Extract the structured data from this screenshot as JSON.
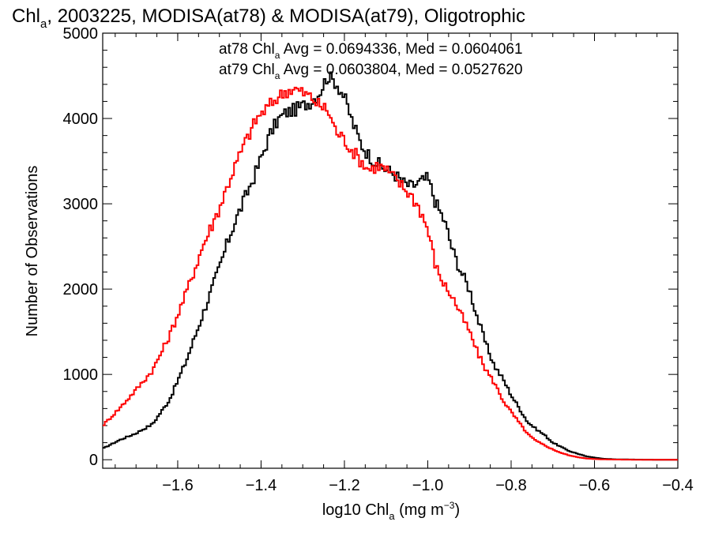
{
  "chart_data": {
    "type": "line",
    "title": {
      "pre": "Chl",
      "sub": "a",
      "post": ", 2003225, MODISA(at78) & MODISA(at79), Oligotrophic"
    },
    "xlabel": {
      "pre": "log10 Chl",
      "sub": "a",
      "mid": " (mg m",
      "sup": "−3",
      "post": ")"
    },
    "ylabel": "Number of Observations",
    "xlim": [
      -1.78,
      -0.4
    ],
    "ylim": [
      -100,
      5000
    ],
    "x_ticks": [
      {
        "value": -1.6,
        "label": "−1.6"
      },
      {
        "value": -1.4,
        "label": "−1.4"
      },
      {
        "value": -1.2,
        "label": "−1.2"
      },
      {
        "value": -1.0,
        "label": "−1.0"
      },
      {
        "value": -0.8,
        "label": "−0.8"
      },
      {
        "value": -0.6,
        "label": "−0.6"
      },
      {
        "value": -0.4,
        "label": "−0.4"
      }
    ],
    "y_ticks": [
      {
        "value": 0,
        "label": "0"
      },
      {
        "value": 1000,
        "label": "1000"
      },
      {
        "value": 2000,
        "label": "2000"
      },
      {
        "value": 3000,
        "label": "3000"
      },
      {
        "value": 4000,
        "label": "4000"
      },
      {
        "value": 5000,
        "label": "5000"
      }
    ],
    "legend": {
      "placement": "top-center",
      "entries": [
        {
          "series": "at78",
          "color": "#000000",
          "pre": "at78 Chl",
          "sub": "a",
          "post": " Avg = 0.0694336, Med = 0.0604061"
        },
        {
          "series": "at79",
          "color": "#ff0000",
          "pre": "at79 Chl",
          "sub": "a",
          "post": " Avg = 0.0603804, Med = 0.0527620"
        }
      ]
    },
    "series": [
      {
        "name": "at78",
        "color": "#000000",
        "style": "step",
        "x": [
          -1.78,
          -1.74,
          -1.7,
          -1.66,
          -1.62,
          -1.58,
          -1.54,
          -1.5,
          -1.47,
          -1.44,
          -1.41,
          -1.38,
          -1.36,
          -1.34,
          -1.32,
          -1.3,
          -1.28,
          -1.26,
          -1.24,
          -1.22,
          -1.2,
          -1.18,
          -1.16,
          -1.14,
          -1.12,
          -1.1,
          -1.08,
          -1.06,
          -1.04,
          -1.02,
          -1.0,
          -0.98,
          -0.96,
          -0.94,
          -0.92,
          -0.9,
          -0.88,
          -0.86,
          -0.84,
          -0.82,
          -0.8,
          -0.78,
          -0.76,
          -0.74,
          -0.72,
          -0.7,
          -0.68,
          -0.66,
          -0.64,
          -0.62,
          -0.6,
          -0.58,
          -0.55,
          -0.5,
          -0.45,
          -0.4
        ],
        "y": [
          130,
          230,
          310,
          420,
          700,
          1150,
          1700,
          2250,
          2700,
          3050,
          3400,
          3800,
          3980,
          4070,
          4100,
          4150,
          4200,
          4300,
          4500,
          4420,
          4250,
          3950,
          3700,
          3560,
          3470,
          3400,
          3350,
          3250,
          3200,
          3250,
          3300,
          3000,
          2800,
          2450,
          2200,
          2000,
          1650,
          1350,
          1100,
          950,
          760,
          600,
          440,
          360,
          290,
          200,
          150,
          100,
          70,
          40,
          25,
          12,
          5,
          2,
          0,
          0
        ]
      },
      {
        "name": "at79",
        "color": "#ff0000",
        "style": "step",
        "x": [
          -1.78,
          -1.74,
          -1.7,
          -1.66,
          -1.62,
          -1.58,
          -1.54,
          -1.5,
          -1.47,
          -1.44,
          -1.41,
          -1.38,
          -1.36,
          -1.34,
          -1.32,
          -1.3,
          -1.28,
          -1.26,
          -1.24,
          -1.22,
          -1.2,
          -1.18,
          -1.16,
          -1.14,
          -1.12,
          -1.1,
          -1.08,
          -1.06,
          -1.04,
          -1.02,
          -1.0,
          -0.98,
          -0.96,
          -0.94,
          -0.92,
          -0.9,
          -0.88,
          -0.86,
          -0.84,
          -0.82,
          -0.8,
          -0.78,
          -0.76,
          -0.74,
          -0.72,
          -0.7,
          -0.68,
          -0.66,
          -0.64,
          -0.62,
          -0.6,
          -0.58,
          -0.55,
          -0.5,
          -0.45,
          -0.4
        ],
        "y": [
          400,
          600,
          820,
          1050,
          1450,
          1950,
          2500,
          2950,
          3350,
          3700,
          4000,
          4150,
          4250,
          4320,
          4350,
          4300,
          4250,
          4150,
          4100,
          3850,
          3750,
          3620,
          3500,
          3400,
          3450,
          3400,
          3300,
          3200,
          3100,
          2950,
          2700,
          2250,
          2050,
          1900,
          1700,
          1500,
          1250,
          1050,
          900,
          700,
          560,
          430,
          300,
          220,
          170,
          120,
          80,
          50,
          30,
          15,
          8,
          4,
          2,
          0,
          0,
          0
        ]
      }
    ]
  }
}
